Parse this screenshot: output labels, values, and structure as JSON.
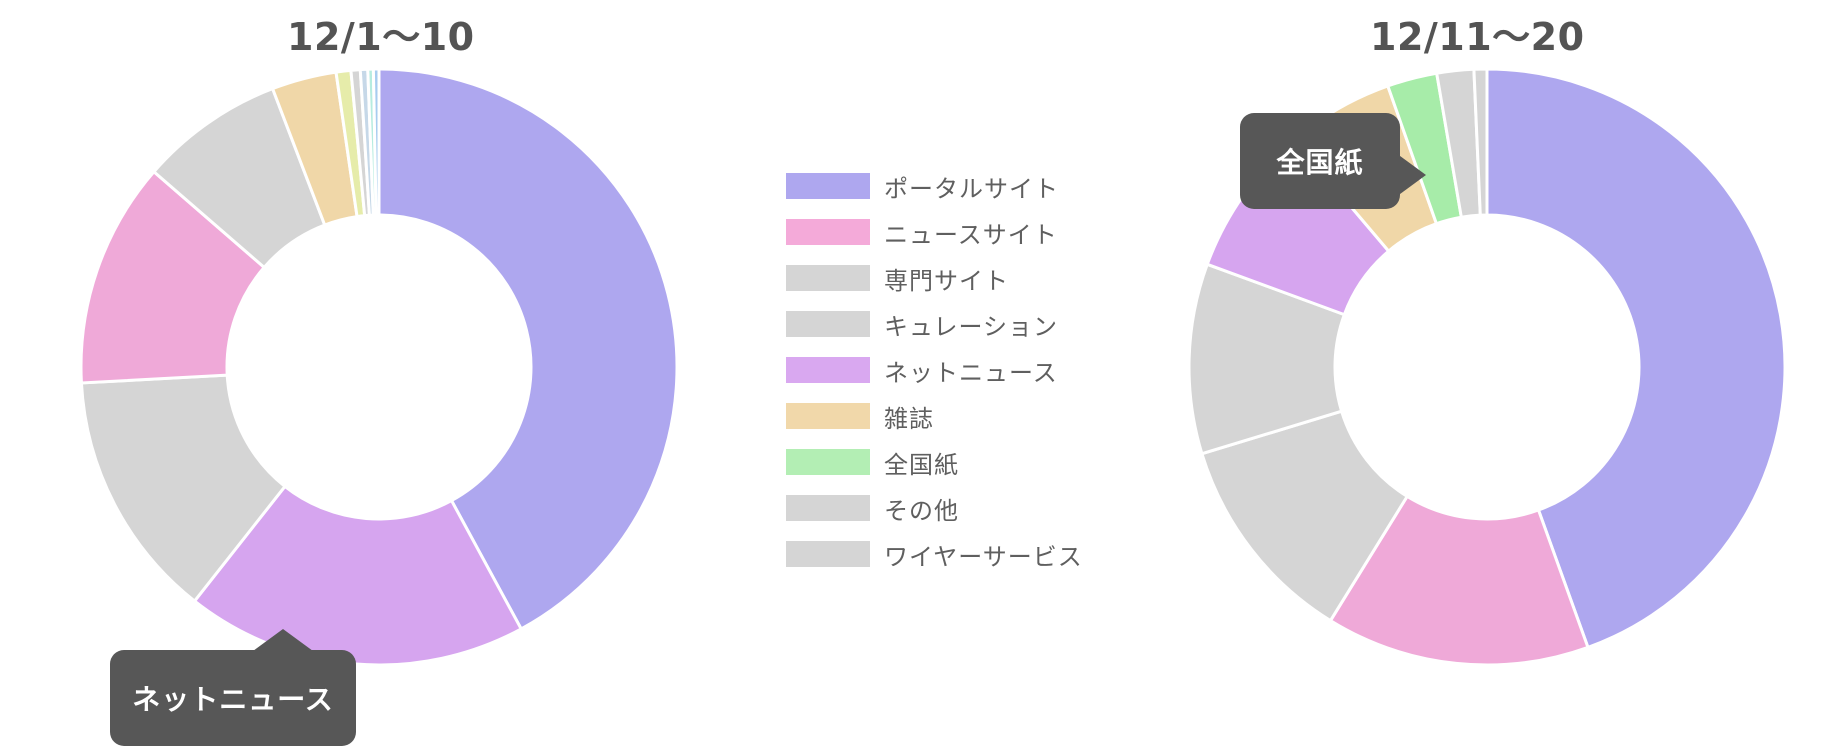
{
  "chart_data": [
    {
      "type": "pie",
      "variant": "donut",
      "title": "12/1〜10",
      "categories": [
        "ポータルサイト",
        "ニュースサイト",
        "専門サイト",
        "キュレーション",
        "ネットニュース",
        "雑誌",
        "全国紙",
        "その他",
        "ワイヤーサービス"
      ],
      "segments": [
        {
          "name": "ポータルサイト",
          "value": 42.0,
          "color": "#aea7ef"
        },
        {
          "name": "ネットニュース",
          "value": 18.5,
          "color": "#d6a5ef"
        },
        {
          "name": "専門サイト",
          "value": 13.5,
          "color": "#d5d5d5"
        },
        {
          "name": "ニュースサイト",
          "value": 12.2,
          "color": "#efa9d8"
        },
        {
          "name": "キュレーション",
          "value": 7.8,
          "color": "#d5d5d5"
        },
        {
          "name": "雑誌",
          "value": 3.5,
          "color": "#f0d7a8"
        },
        {
          "name": "その他",
          "value": 0.8,
          "color": "#e6ecaa"
        },
        {
          "name": "ワイヤーサービス",
          "value": 0.5,
          "color": "#d5d5d5"
        },
        {
          "name": "",
          "value": 0.4,
          "color": "#c6d8e8"
        },
        {
          "name": "",
          "value": 0.3,
          "color": "#b6ece0"
        },
        {
          "name": "",
          "value": 0.3,
          "color": "#a7ccef"
        }
      ],
      "tooltip": "ネットニュース"
    },
    {
      "type": "pie",
      "variant": "donut",
      "title": "12/11〜20",
      "categories": [
        "ポータルサイト",
        "ニュースサイト",
        "専門サイト",
        "キュレーション",
        "ネットニュース",
        "雑誌",
        "全国紙",
        "その他",
        "ワイヤーサービス"
      ],
      "segments": [
        {
          "name": "ポータルサイト",
          "value": 44.5,
          "color": "#aea7ef"
        },
        {
          "name": "ニュースサイト",
          "value": 14.3,
          "color": "#efa9d8"
        },
        {
          "name": "専門サイト",
          "value": 11.5,
          "color": "#d5d5d5"
        },
        {
          "name": "キュレーション",
          "value": 10.3,
          "color": "#d5d5d5"
        },
        {
          "name": "ネットニュース",
          "value": 8.2,
          "color": "#d6a5ef"
        },
        {
          "name": "雑誌",
          "value": 5.8,
          "color": "#f0d7a8"
        },
        {
          "name": "全国紙",
          "value": 2.7,
          "color": "#a7eca9"
        },
        {
          "name": "その他",
          "value": 2.0,
          "color": "#d5d5d5"
        },
        {
          "name": "ワイヤーサービス",
          "value": 0.7,
          "color": "#d5d5d5"
        }
      ],
      "tooltip": "全国紙"
    }
  ],
  "legend": [
    {
      "label": "ポータルサイト",
      "color": "#aea7ef"
    },
    {
      "label": "ニュースサイト",
      "color": "#f4aad9"
    },
    {
      "label": "専門サイト",
      "color": "#d5d5d5"
    },
    {
      "label": "キュレーション",
      "color": "#d5d5d5"
    },
    {
      "label": "ネットニュース",
      "color": "#d9a8f0"
    },
    {
      "label": "雑誌",
      "color": "#f1d8aa"
    },
    {
      "label": "全国紙",
      "color": "#b3eeb4"
    },
    {
      "label": "その他",
      "color": "#d5d5d5"
    },
    {
      "label": "ワイヤーサービス",
      "color": "#d5d5d5"
    }
  ]
}
